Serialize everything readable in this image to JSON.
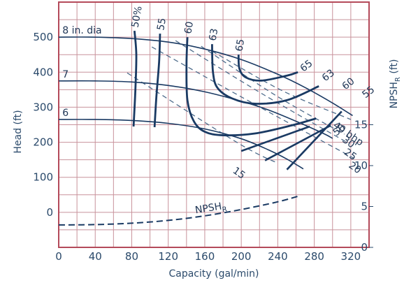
{
  "chart_data": {
    "type": "line",
    "xlabel": "Capacity (gal/min)",
    "ylabel": "Head (ft)",
    "y2label": "NPSH",
    "y2label_sub": "R",
    "y2label_suffix": " (ft)",
    "xlim": [
      0,
      340
    ],
    "ylim": [
      -100,
      600
    ],
    "x_ticks": [
      0,
      40,
      80,
      120,
      160,
      200,
      240,
      280,
      320
    ],
    "y_ticks": [
      0,
      100,
      200,
      300,
      400,
      500
    ],
    "y2lim": [
      0,
      30
    ],
    "y2_ticks": [
      0,
      5,
      10,
      15
    ],
    "grid": true,
    "colors": {
      "grid": "#c8929b",
      "frame": "#b44a5a",
      "curve": "#1a3a63",
      "text": "#2b4a6b",
      "dashed": "#4f6d8c"
    },
    "impeller_curves": [
      {
        "label": "8 in. dia",
        "x": [
          0,
          40,
          80,
          120,
          160,
          200,
          240,
          270,
          300,
          322
        ],
        "y": [
          500,
          500,
          496,
          486,
          466,
          436,
          394,
          356,
          312,
          276
        ]
      },
      {
        "label": "7",
        "x": [
          0,
          40,
          80,
          120,
          160,
          200,
          230,
          260,
          290,
          300
        ],
        "y": [
          375,
          375,
          372,
          362,
          344,
          317,
          292,
          260,
          225,
          211
        ]
      },
      {
        "label": "6",
        "x": [
          0,
          40,
          80,
          120,
          160,
          200,
          230,
          250,
          268
        ],
        "y": [
          265,
          265,
          262,
          254,
          238,
          210,
          178,
          152,
          124
        ]
      }
    ],
    "efficiency_curves": [
      {
        "label": "50%",
        "x": [
          83,
          85,
          84,
          82
        ],
        "y": [
          518,
          450,
          350,
          245
        ]
      },
      {
        "label": "55",
        "x": [
          111,
          110,
          107,
          105
        ],
        "y": [
          510,
          430,
          330,
          243
        ]
      },
      {
        "label": "60",
        "x": [
          141,
          140,
          141,
          148,
          160,
          180,
          215,
          255,
          282
        ],
        "y": [
          500,
          420,
          320,
          260,
          230,
          220,
          225,
          248,
          268
        ]
      },
      {
        "label": "63",
        "x": [
          168,
          169,
          174,
          190,
          215,
          250,
          285
        ],
        "y": [
          480,
          400,
          355,
          325,
          310,
          320,
          360
        ]
      },
      {
        "label": "65",
        "x": [
          197,
          198,
          205,
          222,
          250,
          262
        ],
        "y": [
          450,
          410,
          385,
          376,
          390,
          400
        ]
      }
    ],
    "efficiency_right_labels": [
      {
        "label": "65",
        "x": 268,
        "y": 400
      },
      {
        "label": "63",
        "x": 292,
        "y": 373
      },
      {
        "label": "60",
        "x": 314,
        "y": 349
      },
      {
        "label": "55",
        "x": 336,
        "y": 325
      },
      {
        "label": "50",
        "x": 304,
        "y": 217
      }
    ],
    "power_curves": [
      {
        "label": "15",
        "x": [
          75,
          195,
          240
        ],
        "y": [
          398,
          200,
          140
        ]
      },
      {
        "label": "20",
        "x": [
          102,
          217,
          323
        ],
        "y": [
          472,
          305,
          155
        ]
      },
      {
        "label": "25",
        "x": [
          128,
          225,
          317
        ],
        "y": [
          490,
          335,
          198
        ]
      },
      {
        "label": "30",
        "x": [
          156,
          240,
          313
        ],
        "y": [
          474,
          330,
          223
        ]
      },
      {
        "label": "40 bhp",
        "x": [
          168,
          245,
          320
        ],
        "y": [
          460,
          347,
          265
        ]
      }
    ],
    "power_labels": [
      {
        "label": "15",
        "x": 190,
        "y": 115
      },
      {
        "label": "20",
        "x": 317,
        "y": 130
      },
      {
        "label": "25",
        "x": 312,
        "y": 168
      },
      {
        "label": "30",
        "x": 310,
        "y": 203
      },
      {
        "label": "40 bhp",
        "x": 300,
        "y": 245
      }
    ],
    "power_band_lines": [
      {
        "x": [
          200,
          275
        ],
        "y": [
          175,
          245
        ]
      },
      {
        "x": [
          226,
          298
        ],
        "y": [
          148,
          248
        ]
      },
      {
        "x": [
          250,
          310
        ],
        "y": [
          122,
          288
        ]
      }
    ],
    "npsh_curve": {
      "label": "NPSH",
      "label_sub": "R",
      "x": [
        0,
        40,
        80,
        120,
        160,
        200,
        240,
        265
      ],
      "y": [
        -36,
        -35,
        -31,
        -23,
        -10,
        8,
        30,
        48
      ]
    }
  }
}
